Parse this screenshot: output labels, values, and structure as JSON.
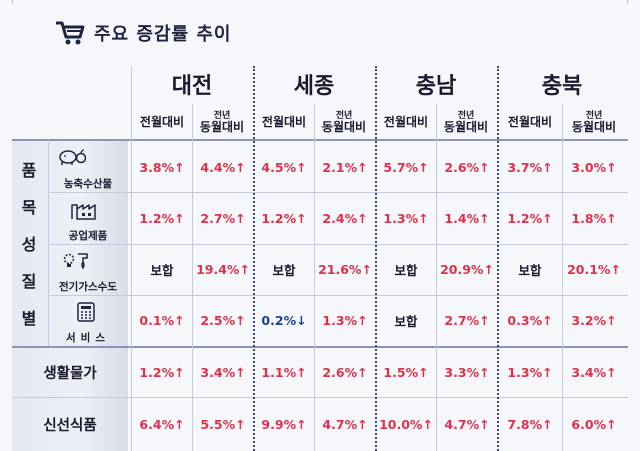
{
  "title": "주요 증감률 추이",
  "regions": [
    "대전",
    "세종",
    "충남",
    "충북"
  ],
  "subheads": {
    "mom": "전월대비",
    "yoy_top": "전년",
    "yoy_bottom": "동월대비"
  },
  "side_group": [
    "품",
    "목",
    "성",
    "질",
    "별"
  ],
  "rows": [
    {
      "label": "농축수산물",
      "icon": "pig-apple-icon",
      "values": [
        "3.8%↑",
        "4.4%↑",
        "4.5%↑",
        "2.1%↑",
        "5.7%↑",
        "2.6%↑",
        "3.7%↑",
        "3.0%↑"
      ]
    },
    {
      "label": "공업제품",
      "icon": "factory-icon",
      "values": [
        "1.2%↑",
        "2.7%↑",
        "1.2%↑",
        "2.4%↑",
        "1.3%↑",
        "1.4%↑",
        "1.2%↑",
        "1.8%↑"
      ]
    },
    {
      "label": "전기가스수도",
      "icon": "utility-icon",
      "values": [
        "보합",
        "19.4%↑",
        "보합",
        "21.6%↑",
        "보합",
        "20.9%↑",
        "보합",
        "20.1%↑"
      ]
    },
    {
      "label": "서비스",
      "icon": "service-icon",
      "values": [
        "0.1%↑",
        "2.5%↑",
        "0.2%↓",
        "1.3%↑",
        "보합",
        "2.7%↑",
        "0.3%↑",
        "3.2%↑"
      ]
    }
  ],
  "summary_rows": [
    {
      "label": "생활물가",
      "values": [
        "1.2%↑",
        "3.4%↑",
        "1.1%↑",
        "2.6%↑",
        "1.5%↑",
        "3.3%↑",
        "1.3%↑",
        "3.4%↑"
      ]
    },
    {
      "label": "신선식품",
      "values": [
        "6.4%↑",
        "5.5%↑",
        "9.9%↑",
        "4.7%↑",
        "10.0%↑",
        "4.7%↑",
        "7.8%↑",
        "6.0%↑"
      ]
    }
  ],
  "colors": {
    "up": "#e0314b",
    "down": "#1d3e9e",
    "neutral": "#1a1a2e",
    "accent": "#1e2440"
  }
}
